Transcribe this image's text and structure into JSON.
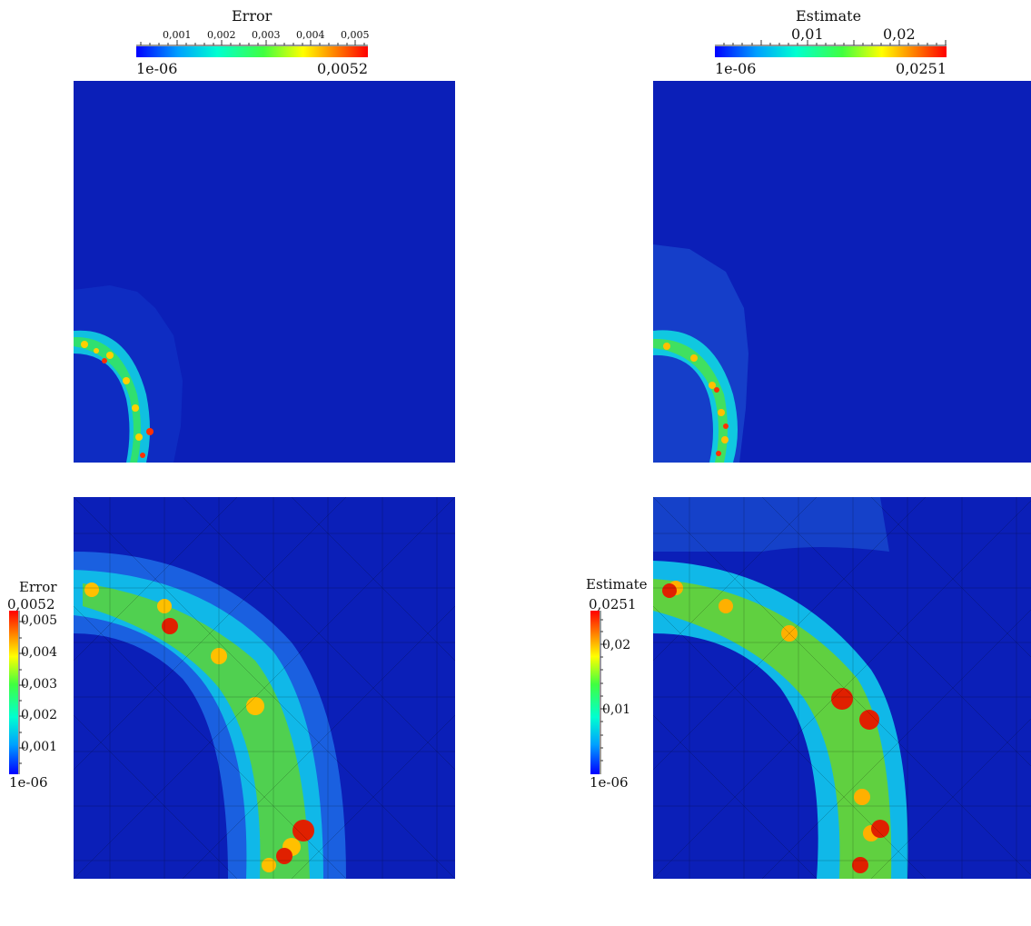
{
  "figures": [
    {
      "id": "error-coarse",
      "colorbar": "error-top"
    },
    {
      "id": "estimate-coarse",
      "colorbar": "estimate-top"
    },
    {
      "id": "error-zoom",
      "colorbar": "error-left"
    },
    {
      "id": "estimate-zoom",
      "colorbar": "estimate-left"
    }
  ],
  "colorbars": {
    "error_top": {
      "title": "Error",
      "min_label": "1e-06",
      "max_label": "0,0052",
      "ticks": [
        "0,001",
        "0,002",
        "0,003",
        "0,004",
        "0,005"
      ]
    },
    "estimate_top": {
      "title": "Estimate",
      "min_label": "1e-06",
      "max_label": "0,0251",
      "ticks": [
        "0,01",
        "0,02"
      ]
    },
    "error_left": {
      "title": "Error",
      "min_label": "1e-06",
      "max_label": "0,0052",
      "ticks": [
        "0,005",
        "0,004",
        "0,003",
        "0,002",
        "0,001"
      ]
    },
    "estimate_left": {
      "title": "Estimate",
      "min_label": "1e-06",
      "max_label": "0,0251",
      "ticks": [
        "0,02",
        "0,01"
      ]
    }
  },
  "colors": {
    "background_low": "#0b1fb8",
    "colormap": [
      "#0000ff",
      "#00a0ff",
      "#00ffd0",
      "#40ff40",
      "#ffff00",
      "#ff8000",
      "#ff0000"
    ]
  }
}
